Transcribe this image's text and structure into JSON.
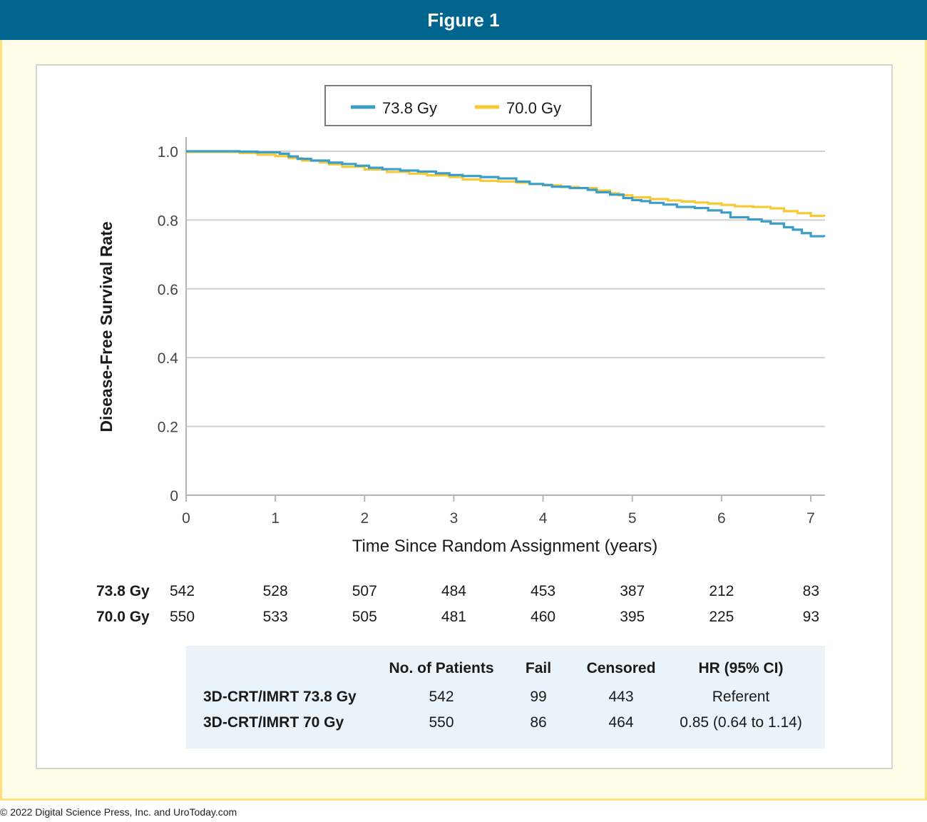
{
  "header": {
    "title": "Figure 1"
  },
  "copyright": "© 2022 Digital Science Press, Inc. and UroToday.com",
  "colors": {
    "series_a": "#3b9ec9",
    "series_b": "#f7c936",
    "header_bg": "#00648c",
    "frame": "#fbe27a"
  },
  "chart_data": {
    "type": "line",
    "xlabel": "Time Since Random Assignment (years)",
    "ylabel": "Disease-Free Survival Rate",
    "xlim": [
      0,
      7.15
    ],
    "ylim": [
      0,
      1.0
    ],
    "x_ticks": [
      "0",
      "1",
      "2",
      "3",
      "4",
      "5",
      "6",
      "7"
    ],
    "y_ticks": [
      "0",
      "0.2",
      "0.4",
      "0.6",
      "0.8",
      "1.0"
    ],
    "y_tick_values": [
      0,
      0.2,
      0.4,
      0.6,
      0.8,
      1.0
    ],
    "grid": "horizontal",
    "legend_position": "top-center",
    "series": [
      {
        "name": "73.8 Gy",
        "color": "#3b9ec9",
        "x": [
          0,
          0.6,
          0.8,
          1.05,
          1.15,
          1.25,
          1.4,
          1.6,
          1.75,
          1.9,
          2.05,
          2.2,
          2.4,
          2.6,
          2.8,
          2.95,
          3.1,
          3.3,
          3.5,
          3.7,
          3.85,
          4.0,
          4.1,
          4.3,
          4.5,
          4.6,
          4.75,
          4.9,
          5.0,
          5.1,
          5.2,
          5.35,
          5.5,
          5.7,
          5.85,
          6.0,
          6.1,
          6.3,
          6.45,
          6.55,
          6.7,
          6.8,
          6.9,
          7.0,
          7.15
        ],
        "y": [
          1.0,
          0.999,
          0.997,
          0.993,
          0.985,
          0.978,
          0.973,
          0.967,
          0.963,
          0.958,
          0.952,
          0.948,
          0.944,
          0.941,
          0.936,
          0.931,
          0.928,
          0.925,
          0.921,
          0.912,
          0.905,
          0.902,
          0.897,
          0.893,
          0.888,
          0.881,
          0.874,
          0.864,
          0.858,
          0.855,
          0.85,
          0.845,
          0.838,
          0.835,
          0.828,
          0.822,
          0.808,
          0.802,
          0.796,
          0.79,
          0.779,
          0.772,
          0.762,
          0.753,
          0.751
        ]
      },
      {
        "name": "70.0 Gy",
        "color": "#f7c936",
        "x": [
          0,
          0.6,
          0.8,
          1.0,
          1.15,
          1.3,
          1.5,
          1.6,
          1.75,
          2.0,
          2.25,
          2.5,
          2.7,
          2.95,
          3.1,
          3.3,
          3.5,
          3.7,
          3.85,
          4.0,
          4.2,
          4.4,
          4.6,
          4.75,
          4.85,
          5.0,
          5.2,
          5.4,
          5.55,
          5.7,
          5.85,
          6.0,
          6.15,
          6.35,
          6.55,
          6.7,
          6.85,
          7.0,
          7.15
        ],
        "y": [
          0.998,
          0.995,
          0.99,
          0.986,
          0.98,
          0.973,
          0.968,
          0.962,
          0.955,
          0.947,
          0.94,
          0.935,
          0.93,
          0.925,
          0.918,
          0.914,
          0.912,
          0.909,
          0.905,
          0.901,
          0.896,
          0.893,
          0.886,
          0.878,
          0.872,
          0.866,
          0.861,
          0.857,
          0.854,
          0.851,
          0.848,
          0.844,
          0.84,
          0.838,
          0.834,
          0.826,
          0.82,
          0.812,
          0.81
        ]
      }
    ]
  },
  "at_risk": {
    "times": [
      0,
      1,
      2,
      3,
      4,
      5,
      6,
      7
    ],
    "rows": [
      {
        "label": "73.8 Gy",
        "values": [
          "542",
          "528",
          "507",
          "484",
          "453",
          "387",
          "212",
          "83"
        ]
      },
      {
        "label": "70.0 Gy",
        "values": [
          "550",
          "533",
          "505",
          "481",
          "460",
          "395",
          "225",
          "93"
        ]
      }
    ]
  },
  "stats_table": {
    "headers": [
      "",
      "No. of Patients",
      "Fail",
      "Censored",
      "HR (95% CI)"
    ],
    "rows": [
      [
        "3D-CRT/IMRT 73.8 Gy",
        "542",
        "99",
        "443",
        "Referent"
      ],
      [
        "3D-CRT/IMRT 70 Gy",
        "550",
        "86",
        "464",
        "0.85 (0.64 to 1.14)"
      ]
    ]
  }
}
